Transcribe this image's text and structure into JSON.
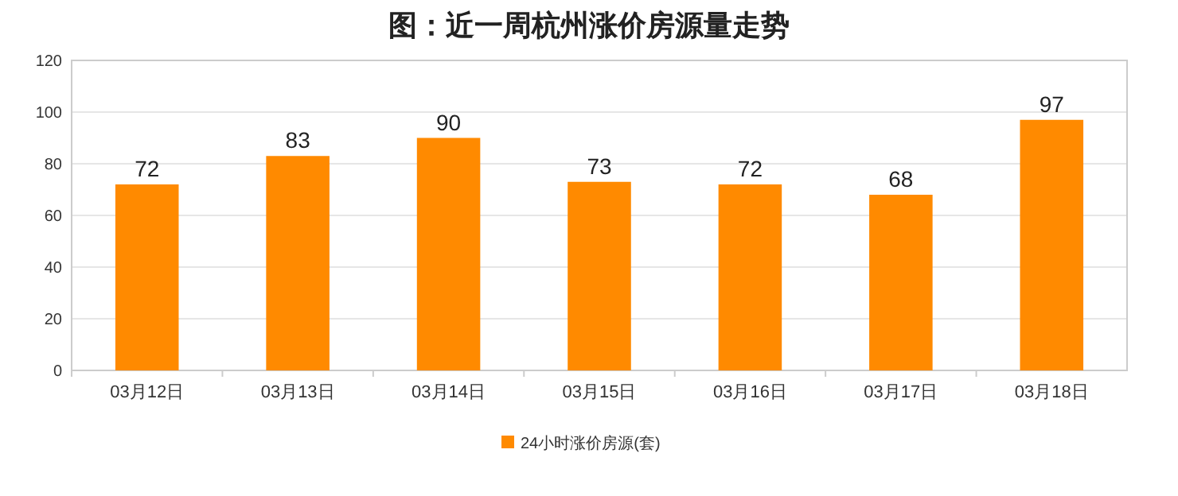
{
  "chart_data": {
    "type": "bar",
    "title": "图：近一周杭州涨价房源量走势",
    "categories": [
      "03月12日",
      "03月13日",
      "03月14日",
      "03月15日",
      "03月16日",
      "03月17日",
      "03月18日"
    ],
    "series": [
      {
        "name": "24小时涨价房源(套)",
        "color": "#ff8a00",
        "values": [
          72,
          83,
          90,
          73,
          72,
          68,
          97
        ]
      }
    ],
    "ylim": [
      0,
      120
    ],
    "yticks": [
      0,
      20,
      40,
      60,
      80,
      100,
      120
    ],
    "grid": "y",
    "legend": "bottom",
    "data_labels": true
  }
}
